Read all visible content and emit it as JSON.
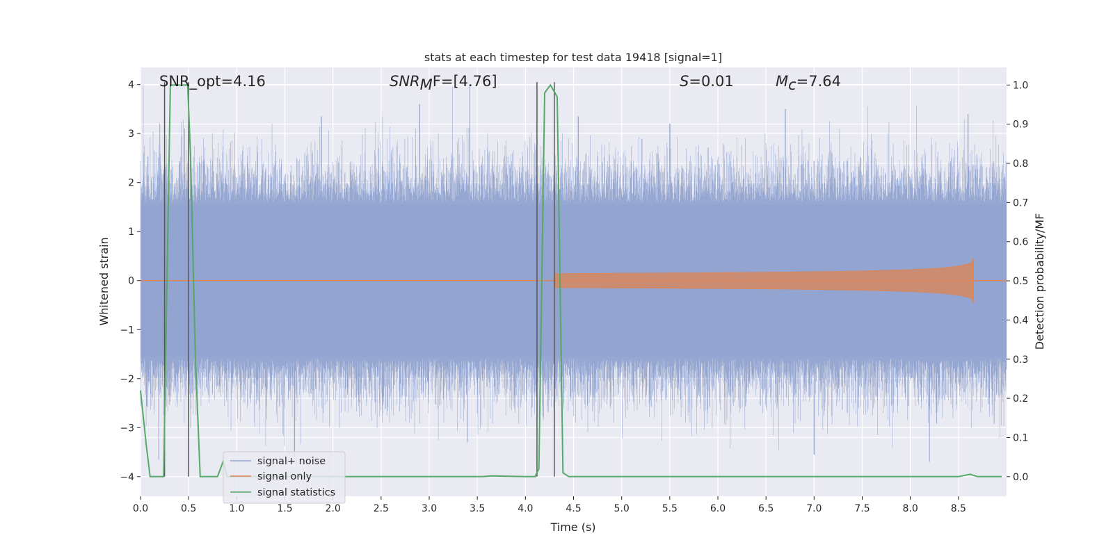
{
  "chart_data": {
    "type": "line",
    "title": "stats at each timestep for test data 19418 [signal=1]",
    "xlabel": "Time (s)",
    "ylabel": "Whitened strain",
    "ylabel_right": "Detection probability/MF",
    "xlim": [
      0,
      9.0
    ],
    "ylim": [
      -4.4,
      4.35
    ],
    "ylim_right": [
      -0.05,
      1.045
    ],
    "x_ticks": [
      0.0,
      0.5,
      1.0,
      1.5,
      2.0,
      2.5,
      3.0,
      3.5,
      4.0,
      4.5,
      5.0,
      5.5,
      6.0,
      6.5,
      7.0,
      7.5,
      8.0,
      8.5
    ],
    "x_tick_labels": [
      "0.0",
      "0.5",
      "1.0",
      "1.5",
      "2.0",
      "2.5",
      "3.0",
      "3.5",
      "4.0",
      "4.5",
      "5.0",
      "5.5",
      "6.0",
      "6.5",
      "7.0",
      "7.5",
      "8.0",
      "8.5"
    ],
    "y_ticks": [
      4,
      3,
      2,
      1,
      0,
      -1,
      -2,
      -3,
      -4
    ],
    "y_tick_labels": [
      "4",
      "3",
      "2",
      "1",
      "0",
      "−1",
      "−2",
      "−3",
      "−4"
    ],
    "y_ticks_right": [
      1.0,
      0.9,
      0.8,
      0.7,
      0.6,
      0.5,
      0.4,
      0.3,
      0.2,
      0.1,
      0.0
    ],
    "y_tick_labels_right": [
      "1.0",
      "0.9",
      "0.8",
      "0.7",
      "0.6",
      "0.5",
      "0.4",
      "0.3",
      "0.2",
      "0.1",
      "0.0"
    ],
    "grid": true,
    "legend_position": "lower-left",
    "series": [
      {
        "name": "signal+ noise",
        "axis": "left",
        "color": "#91a3cf",
        "description": "noise band",
        "envelope_typical": 1.6,
        "peaks": [
          {
            "x": 0.2,
            "y": 3.2
          },
          {
            "x": 0.46,
            "y": 3.1
          },
          {
            "x": 1.88,
            "y": 3.35
          },
          {
            "x": 2.9,
            "y": 3.6
          },
          {
            "x": 3.42,
            "y": 4.0
          },
          {
            "x": 4.55,
            "y": 3.35
          },
          {
            "x": 5.5,
            "y": 3.2
          },
          {
            "x": 6.7,
            "y": 3.5
          },
          {
            "x": 8.6,
            "y": 3.4
          },
          {
            "x": 0.19,
            "y": -3.65
          },
          {
            "x": 1.6,
            "y": -3.6
          },
          {
            "x": 3.4,
            "y": -3.3
          },
          {
            "x": 4.3,
            "y": -3.1
          },
          {
            "x": 7.0,
            "y": -3.55
          },
          {
            "x": 8.2,
            "y": -3.7
          }
        ]
      },
      {
        "name": "signal only",
        "axis": "left",
        "color": "#dd8452",
        "chirp": {
          "start": 4.3,
          "peak_time": 8.65,
          "peak_amplitude": 0.45
        }
      },
      {
        "name": "signal statistics",
        "axis": "right",
        "color": "#55a868",
        "x": [
          0.0,
          0.06,
          0.1,
          0.18,
          0.24,
          0.31,
          0.38,
          0.49,
          0.52,
          0.57,
          0.62,
          0.7,
          0.8,
          0.86,
          0.9,
          3.55,
          3.65,
          4.0,
          4.1,
          4.14,
          4.2,
          4.26,
          4.33,
          4.39,
          4.45,
          8.5,
          8.62,
          8.7,
          8.77,
          8.95
        ],
        "values": [
          0.22,
          0.08,
          0.0,
          0.0,
          0.0,
          1.0,
          1.0,
          1.0,
          0.82,
          0.3,
          0.0,
          0.0,
          0.0,
          0.04,
          0.0,
          0.0,
          0.002,
          0.0,
          0.0,
          0.02,
          0.98,
          1.0,
          0.97,
          0.01,
          0.0,
          0.0,
          0.006,
          0.0,
          0.0,
          0.0
        ]
      }
    ],
    "markers_x": [
      0.25,
      0.5,
      4.12,
      4.3
    ],
    "annotations": {
      "snr_opt": "SNR_opt=4.16",
      "snr_mf_main": "SNR",
      "snr_mf_sub": "M",
      "snr_mf_rest": "F=[4.76]",
      "s_sym": "S",
      "s_val": "=0.01",
      "mc_main": "M",
      "mc_sub": "c",
      "mc_val": "=7.64"
    }
  }
}
